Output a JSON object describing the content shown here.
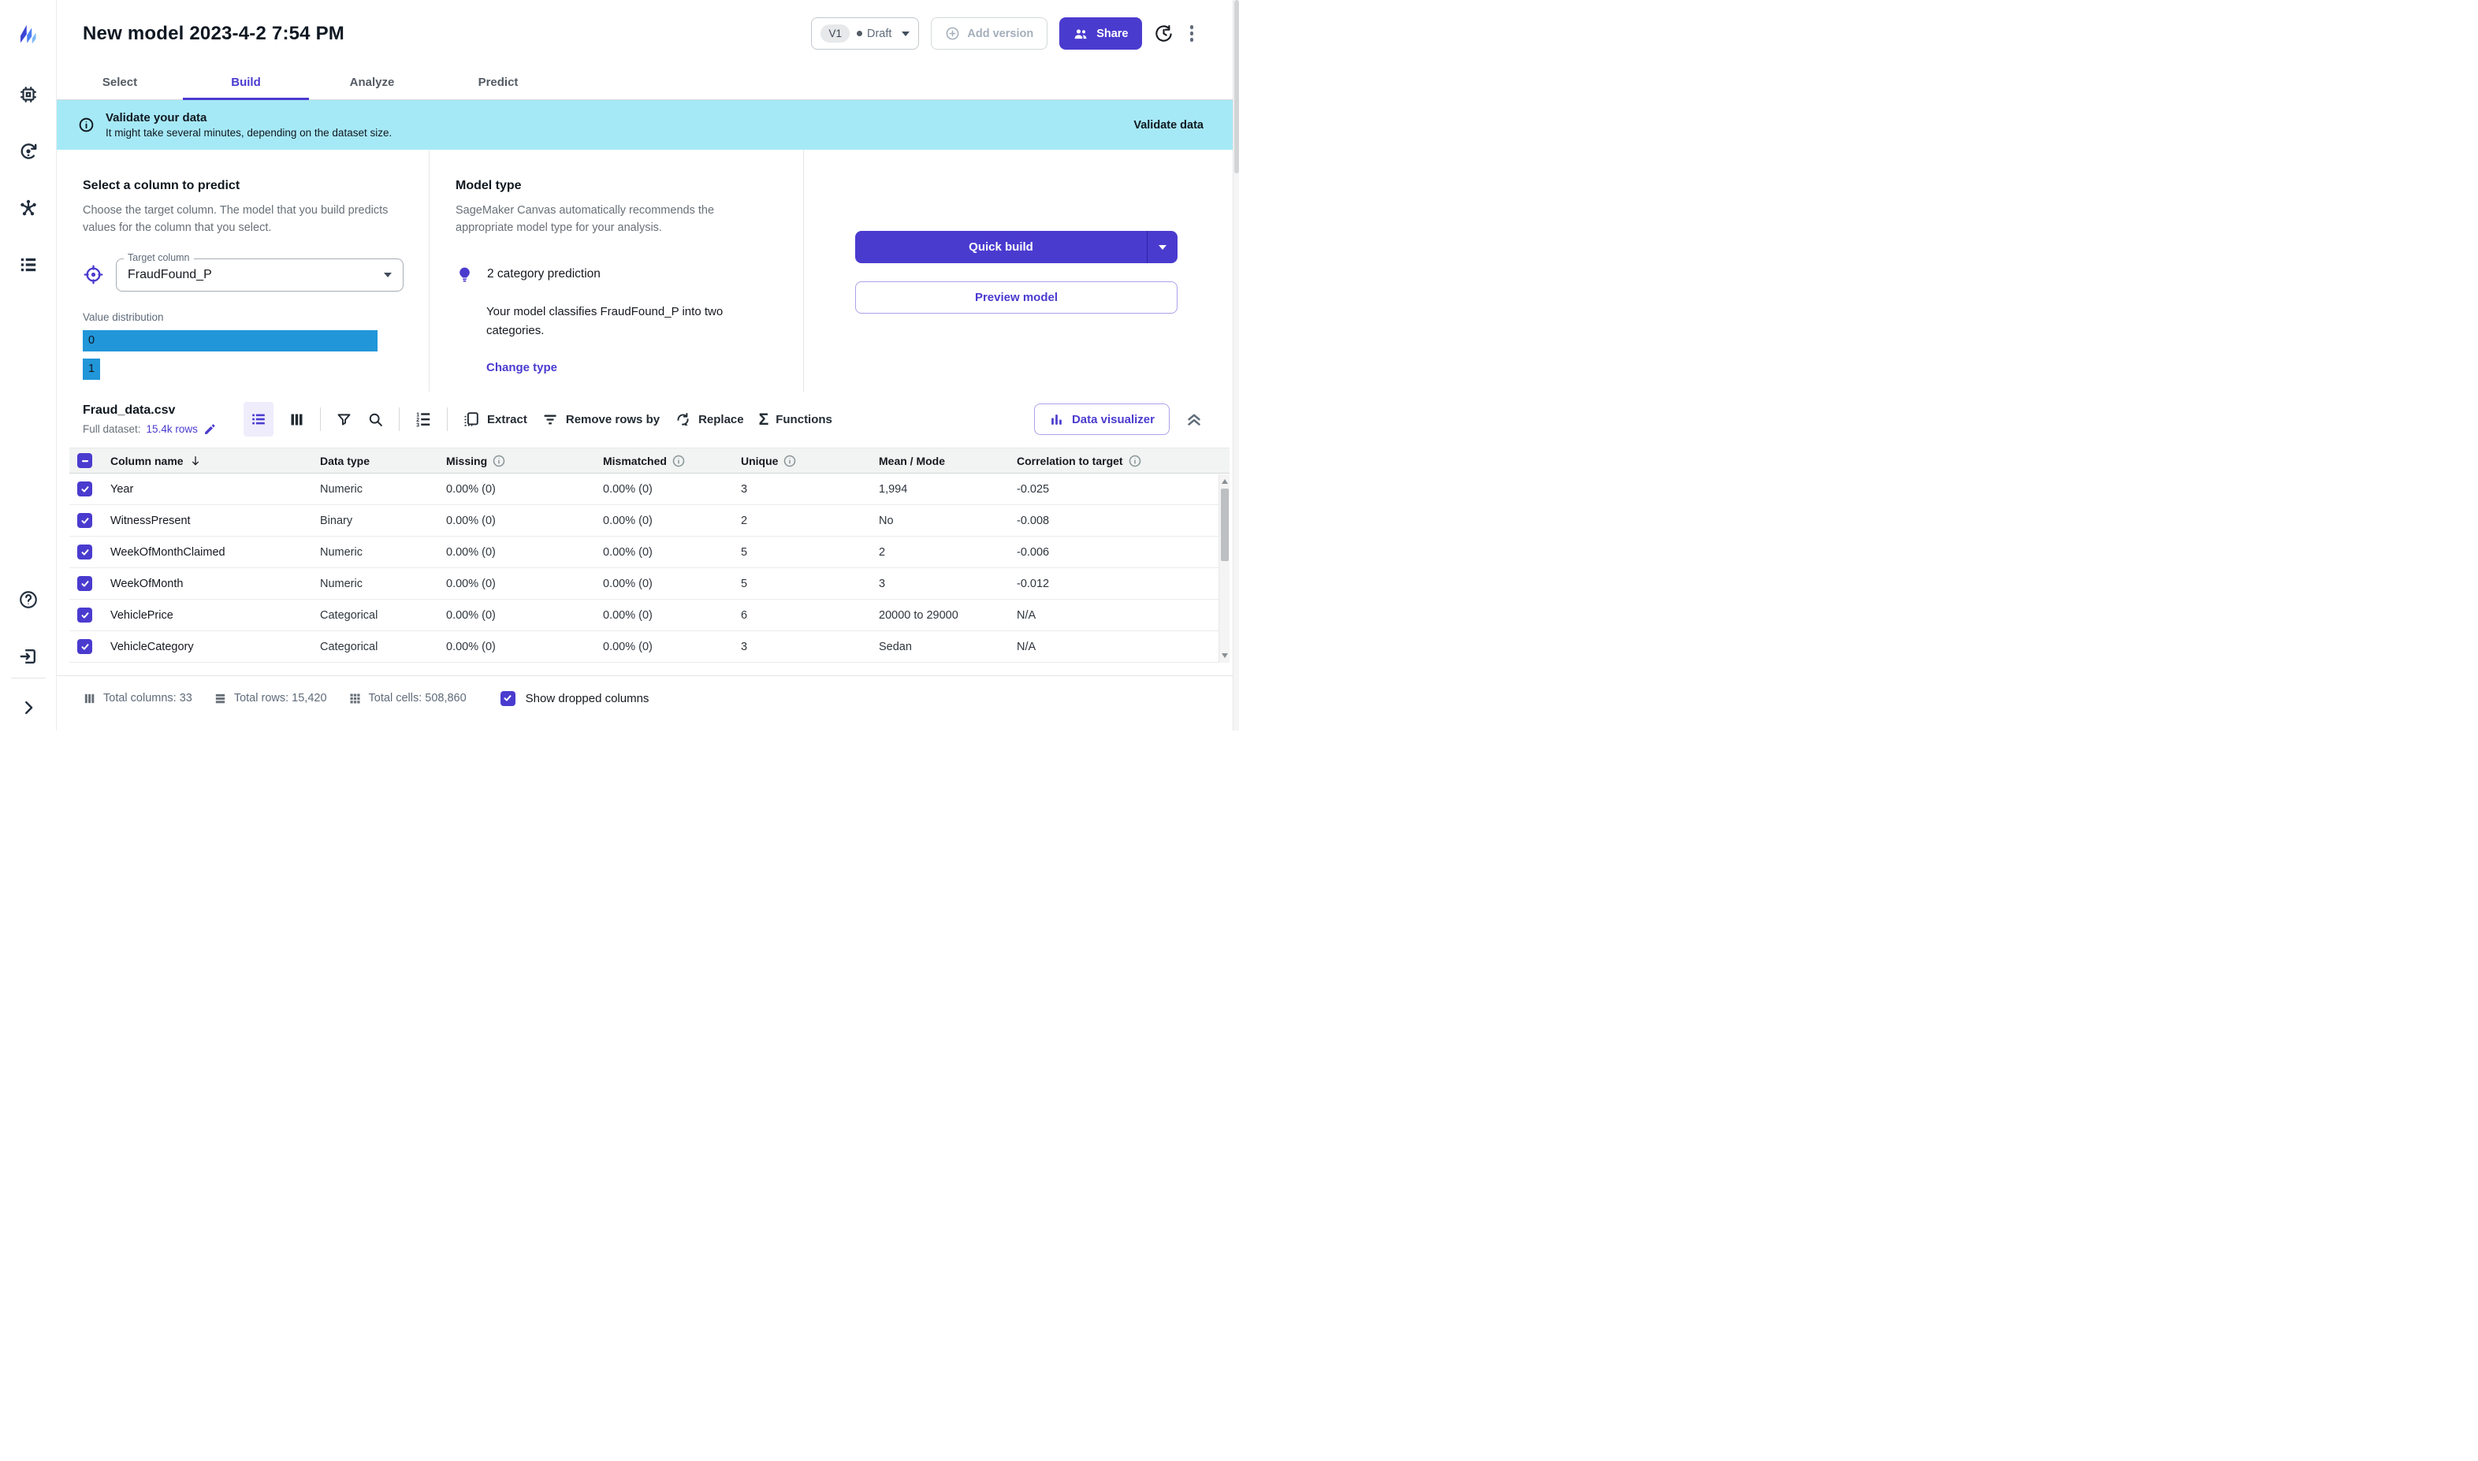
{
  "colors": {
    "accent": "#4a3bcf",
    "accent_bg": "#efedfb",
    "bar_blue": "#2196d9",
    "banner_bg": "#a6e9f6"
  },
  "header": {
    "title": "New model 2023-4-2 7:54 PM",
    "version_badge": "V1",
    "version_status": "Draft",
    "add_version_label": "Add version",
    "share_label": "Share"
  },
  "tabs": [
    {
      "label": "Select"
    },
    {
      "label": "Build"
    },
    {
      "label": "Analyze"
    },
    {
      "label": "Predict"
    }
  ],
  "banner": {
    "title": "Validate your data",
    "subtitle": "It might take several minutes, depending on the dataset size.",
    "action": "Validate data"
  },
  "predict_section": {
    "heading": "Select a column to predict",
    "description": "Choose the target column. The model that you build predicts values for the column that you select.",
    "target_label": "Target column",
    "target_value": "FraudFound_P",
    "distribution_label": "Value distribution",
    "bars": [
      {
        "label": "0",
        "width": "92%"
      },
      {
        "label": "1",
        "width": "5.5%"
      }
    ]
  },
  "model_type": {
    "heading": "Model type",
    "description": "SageMaker Canvas automatically recommends the appropriate model type for your analysis.",
    "recommendation": "2 category prediction",
    "detail": "Your model classifies FraudFound_P into two categories.",
    "change_link": "Change type"
  },
  "build_actions": {
    "quick_build": "Quick build",
    "preview_model": "Preview model"
  },
  "dataset": {
    "filename": "Fraud_data.csv",
    "full_dataset_label": "Full dataset:",
    "rows_link": "15.4k rows",
    "extract_label": "Extract",
    "remove_rows_label": "Remove rows by",
    "replace_label": "Replace",
    "functions_label": "Functions",
    "functions_icon": "Σ",
    "visualizer_label": "Data visualizer"
  },
  "table": {
    "headers": [
      "Column name",
      "Data type",
      "Missing",
      "Mismatched",
      "Unique",
      "Mean / Mode",
      "Correlation to target"
    ],
    "rows": [
      {
        "name": "Year",
        "type": "Numeric",
        "missing": "0.00% (0)",
        "mismatched": "0.00% (0)",
        "unique": "3",
        "mean": "1,994",
        "corr": "-0.025"
      },
      {
        "name": "WitnessPresent",
        "type": "Binary",
        "missing": "0.00% (0)",
        "mismatched": "0.00% (0)",
        "unique": "2",
        "mean": "No",
        "corr": "-0.008"
      },
      {
        "name": "WeekOfMonthClaimed",
        "type": "Numeric",
        "missing": "0.00% (0)",
        "mismatched": "0.00% (0)",
        "unique": "5",
        "mean": "2",
        "corr": "-0.006"
      },
      {
        "name": "WeekOfMonth",
        "type": "Numeric",
        "missing": "0.00% (0)",
        "mismatched": "0.00% (0)",
        "unique": "5",
        "mean": "3",
        "corr": "-0.012"
      },
      {
        "name": "VehiclePrice",
        "type": "Categorical",
        "missing": "0.00% (0)",
        "mismatched": "0.00% (0)",
        "unique": "6",
        "mean": "20000 to 29000",
        "corr": "N/A"
      },
      {
        "name": "VehicleCategory",
        "type": "Categorical",
        "missing": "0.00% (0)",
        "mismatched": "0.00% (0)",
        "unique": "3",
        "mean": "Sedan",
        "corr": "N/A"
      }
    ]
  },
  "footer": {
    "total_columns": "Total columns: 33",
    "total_rows": "Total rows: 15,420",
    "total_cells": "Total cells: 508,860",
    "show_dropped": "Show dropped columns"
  }
}
